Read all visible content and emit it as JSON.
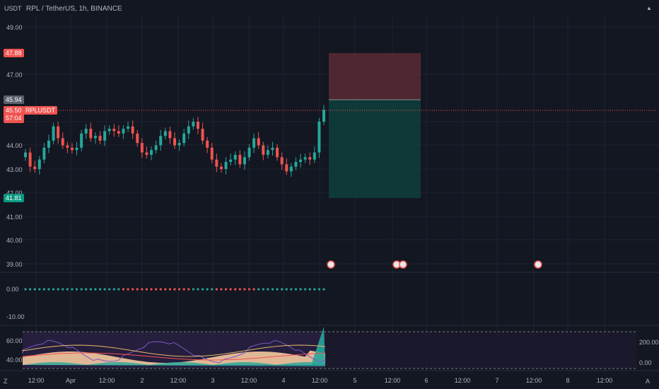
{
  "header": {
    "currency": "USDT",
    "title": "RPL / TetherUS, 1h, BINANCE"
  },
  "price_axis": {
    "ticks": [
      "49.00",
      "47.00",
      "45.00",
      "44.00",
      "43.00",
      "42.00",
      "41.00",
      "40.00",
      "39.00"
    ]
  },
  "price_tags": {
    "stop": "47.88",
    "last_price": "45.94",
    "current": "45.50",
    "countdown": "57:04",
    "symbol": "RPLUSDT",
    "target": "41.81"
  },
  "oscillator1": {
    "ticks": [
      "0.00",
      "-10.00"
    ]
  },
  "oscillator2": {
    "left_ticks": [
      "60.00",
      "40.00"
    ],
    "right_ticks": [
      "200.00",
      "0.00"
    ]
  },
  "time_axis": {
    "labels": [
      "12:00",
      "Apr",
      "12:00",
      "2",
      "12:00",
      "3",
      "12:00",
      "4",
      "12:00",
      "5",
      "12:00",
      "6",
      "12:00",
      "7",
      "12:00",
      "8",
      "12:00"
    ]
  },
  "footer": {
    "left_icon_text": "Z",
    "right_icon_text": "A"
  },
  "chart_data": {
    "type": "candlestick",
    "title": "RPL / TetherUS, 1h, BINANCE",
    "ylim": [
      38.8,
      49.8
    ],
    "closes": [
      43.7,
      43.1,
      43.0,
      43.4,
      43.9,
      44.2,
      44.8,
      44.3,
      44.0,
      43.9,
      43.8,
      43.9,
      44.5,
      44.7,
      44.3,
      44.4,
      44.2,
      44.6,
      44.7,
      44.6,
      44.5,
      44.7,
      44.8,
      44.5,
      44.1,
      43.7,
      43.6,
      43.8,
      44.0,
      44.4,
      44.6,
      44.3,
      44.0,
      44.1,
      44.5,
      44.8,
      45.0,
      44.7,
      44.2,
      43.9,
      43.4,
      43.1,
      43.0,
      43.3,
      43.4,
      43.6,
      43.2,
      43.5,
      43.9,
      44.3,
      44.0,
      43.6,
      43.8,
      43.9,
      43.5,
      43.2,
      42.9,
      43.1,
      43.3,
      43.4,
      43.5,
      43.4,
      43.7,
      45.0,
      45.5
    ],
    "colors": {
      "up": "#26a69a",
      "down": "#ef5350",
      "stop_zone": "#f2364533",
      "target_zone": "#08998133"
    },
    "position": {
      "stop": 47.88,
      "entry": 45.94,
      "target": 41.81
    }
  }
}
